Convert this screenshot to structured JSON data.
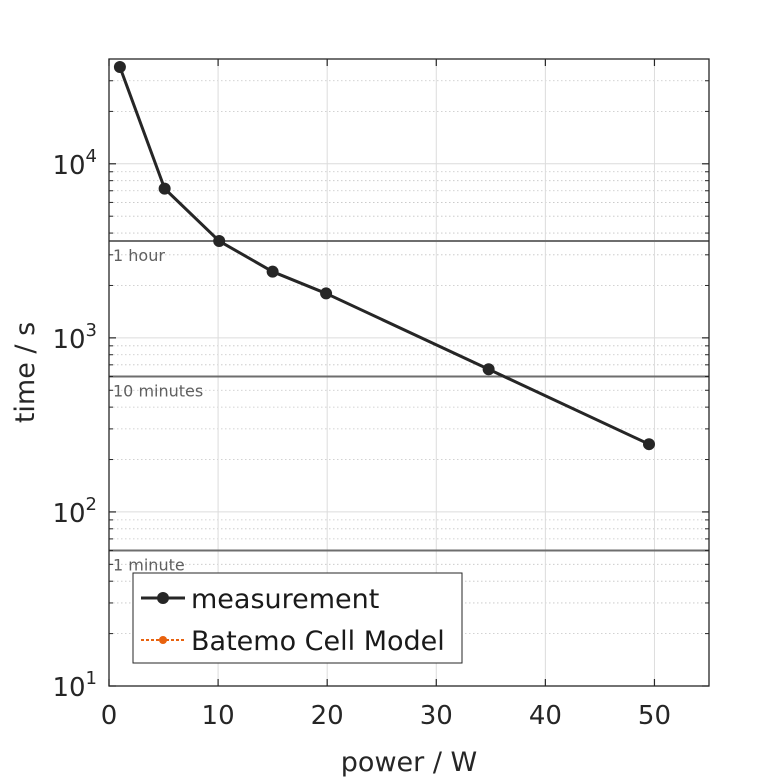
{
  "chart_data": {
    "type": "line",
    "xlabel": "power / W",
    "ylabel": "time / s",
    "xlim": [
      0,
      55
    ],
    "ylim": [
      10,
      40000
    ],
    "yscale": "log",
    "grid": true,
    "legend_placement": "bottom-left",
    "x_ticks": [
      0,
      10,
      20,
      30,
      40,
      50
    ],
    "x_tick_labels": [
      "0",
      "10",
      "20",
      "30",
      "40",
      "50"
    ],
    "y_ticks": [
      {
        "value": 10,
        "base": "10",
        "exp": "1"
      },
      {
        "value": 100,
        "base": "10",
        "exp": "2"
      },
      {
        "value": 1000,
        "base": "10",
        "exp": "3"
      },
      {
        "value": 10000,
        "base": "10",
        "exp": "4"
      }
    ],
    "reference_lines": [
      {
        "value": 3600,
        "label": "1 hour"
      },
      {
        "value": 600,
        "label": "10 minutes"
      },
      {
        "value": 60,
        "label": "1 minute"
      }
    ],
    "series": [
      {
        "name": "measurement",
        "color": "#262626",
        "x": [
          1,
          5.1,
          10.1,
          15,
          19.9,
          34.8,
          49.5
        ],
        "y": [
          36000,
          7200,
          3600,
          2400,
          1800,
          660,
          245
        ]
      },
      {
        "name": "Batemo Cell Model",
        "color": "#e8620e",
        "x": [],
        "y": []
      }
    ]
  }
}
